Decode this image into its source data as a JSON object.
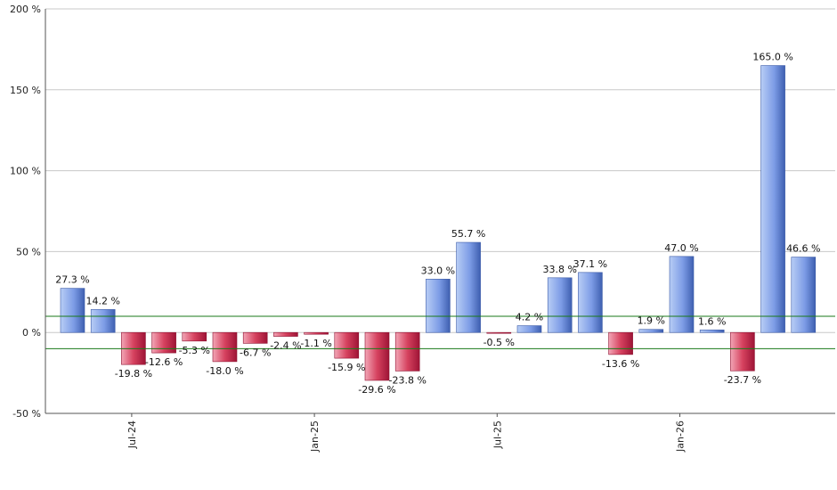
{
  "chart_data": {
    "type": "bar",
    "title": "",
    "xlabel": "",
    "ylabel": "",
    "ylim": [
      -50,
      200
    ],
    "y_ticks": [
      -50,
      0,
      50,
      100,
      150,
      200
    ],
    "y_tick_labels": [
      "-50 %",
      "0 %",
      "50 %",
      "100 %",
      "150 %",
      "200 %"
    ],
    "x_tick_labels": [
      {
        "label": "Jul-24",
        "index": 2
      },
      {
        "label": "Jan-25",
        "index": 8
      },
      {
        "label": "Jul-25",
        "index": 14
      },
      {
        "label": "Jan-26",
        "index": 20
      }
    ],
    "grid": "horizontal",
    "reference_lines": [
      10,
      -10
    ],
    "values": [
      27.3,
      14.2,
      -19.8,
      -12.6,
      -5.3,
      -18.0,
      -6.7,
      -2.4,
      -1.1,
      -15.9,
      -29.6,
      -23.8,
      33.0,
      55.7,
      -0.5,
      4.2,
      33.8,
      37.1,
      -13.6,
      1.9,
      47.0,
      1.6,
      -23.7,
      165.0,
      46.6
    ],
    "labels": [
      "27.3 %",
      "14.2 %",
      "-19.8 %",
      "-12.6 %",
      "-5.3 %",
      "-18.0 %",
      "-6.7 %",
      "-2.4 %",
      "-1.1 %",
      "-15.9 %",
      "-29.6 %",
      "-23.8 %",
      "33.0 %",
      "55.7 %",
      "-0.5 %",
      "4.2 %",
      "33.8 %",
      "37.1 %",
      "-13.6 %",
      "1.9 %",
      "47.0 %",
      "1.6 %",
      "-23.7 %",
      "165.0 %",
      "46.6 %"
    ],
    "colors": {
      "positive_light": "#b8cdf5",
      "positive_dark": "#4a6cc0",
      "negative_light": "#f0a0b0",
      "negative_dark": "#b01c40",
      "reference_line": "#1a7a1a",
      "grid": "#c8c8c8",
      "axis": "#555555"
    }
  }
}
